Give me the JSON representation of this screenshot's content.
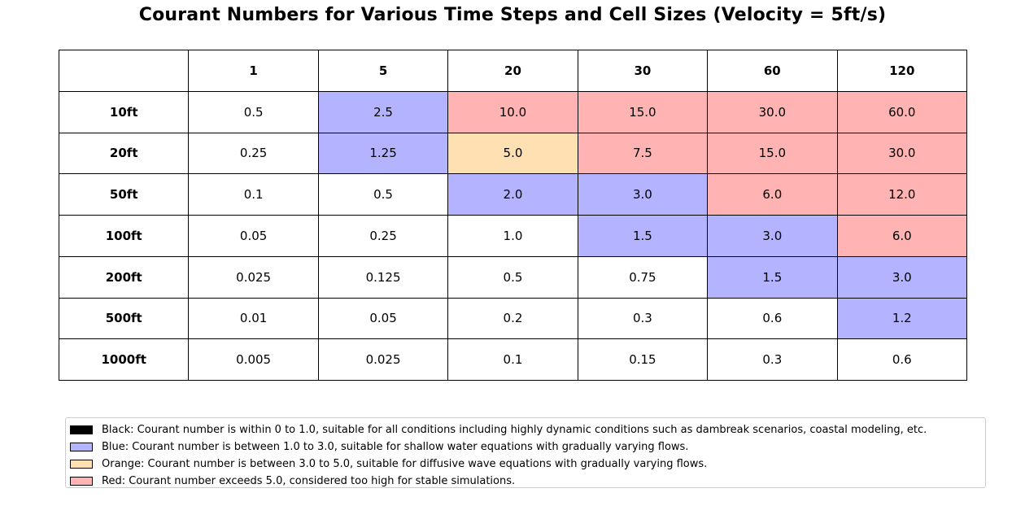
{
  "title": "Courant Numbers for Various Time Steps and Cell Sizes (Velocity = 5ft/s)",
  "colors": {
    "white": "#ffffff",
    "blue": "#b3b3ff",
    "orange": "#ffe0b3",
    "red": "#ffb3b3",
    "black": "#000000"
  },
  "chart_data": {
    "type": "table",
    "title": "Courant Numbers for Various Time Steps and Cell Sizes (Velocity = 5ft/s)",
    "corner": "",
    "columns": [
      "1",
      "5",
      "20",
      "30",
      "60",
      "120"
    ],
    "rows": [
      {
        "label": "10ft",
        "values": [
          "0.5",
          "2.5",
          "10.0",
          "15.0",
          "30.0",
          "60.0"
        ],
        "colors": [
          "white",
          "blue",
          "red",
          "red",
          "red",
          "red"
        ]
      },
      {
        "label": "20ft",
        "values": [
          "0.25",
          "1.25",
          "5.0",
          "7.5",
          "15.0",
          "30.0"
        ],
        "colors": [
          "white",
          "blue",
          "orange",
          "red",
          "red",
          "red"
        ]
      },
      {
        "label": "50ft",
        "values": [
          "0.1",
          "0.5",
          "2.0",
          "3.0",
          "6.0",
          "12.0"
        ],
        "colors": [
          "white",
          "white",
          "blue",
          "blue",
          "red",
          "red"
        ]
      },
      {
        "label": "100ft",
        "values": [
          "0.05",
          "0.25",
          "1.0",
          "1.5",
          "3.0",
          "6.0"
        ],
        "colors": [
          "white",
          "white",
          "white",
          "blue",
          "blue",
          "red"
        ]
      },
      {
        "label": "200ft",
        "values": [
          "0.025",
          "0.125",
          "0.5",
          "0.75",
          "1.5",
          "3.0"
        ],
        "colors": [
          "white",
          "white",
          "white",
          "white",
          "blue",
          "blue"
        ]
      },
      {
        "label": "500ft",
        "values": [
          "0.01",
          "0.05",
          "0.2",
          "0.3",
          "0.6",
          "1.2"
        ],
        "colors": [
          "white",
          "white",
          "white",
          "white",
          "white",
          "blue"
        ]
      },
      {
        "label": "1000ft",
        "values": [
          "0.005",
          "0.025",
          "0.1",
          "0.15",
          "0.3",
          "0.6"
        ],
        "colors": [
          "white",
          "white",
          "white",
          "white",
          "white",
          "white"
        ]
      }
    ],
    "legend": [
      {
        "color": "black",
        "text": "Black: Courant number is within 0 to 1.0, suitable for all conditions including highly dynamic conditions such as dambreak scenarios, coastal modeling, etc."
      },
      {
        "color": "blue",
        "text": "Blue: Courant number is between 1.0 to 3.0, suitable for shallow water equations with gradually varying flows."
      },
      {
        "color": "orange",
        "text": "Orange: Courant number is between 3.0 to 5.0, suitable for diffusive wave equations with gradually varying flows."
      },
      {
        "color": "red",
        "text": "Red: Courant number exceeds 5.0, considered too high for stable simulations."
      }
    ],
    "legend_placement": "bottom"
  }
}
